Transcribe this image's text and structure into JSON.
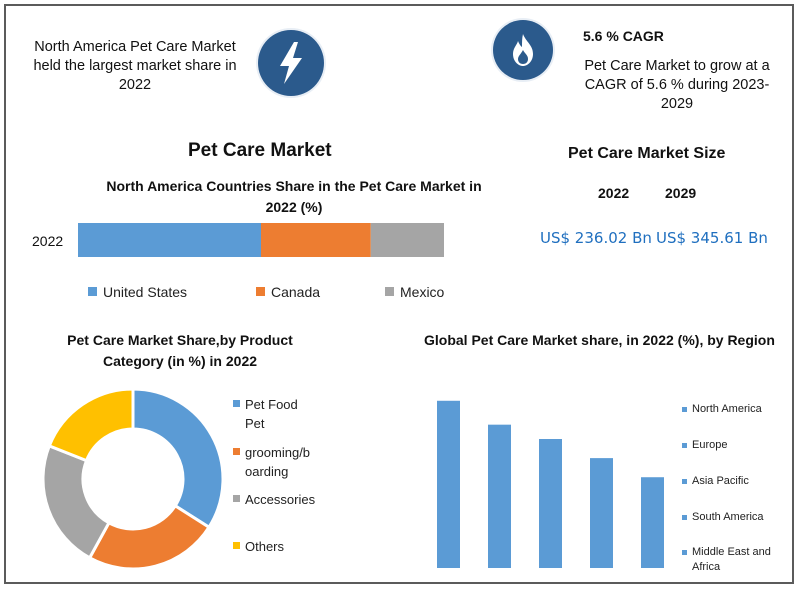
{
  "highlights": {
    "left_text": "North America Pet Care Market held the largest market share in 2022",
    "left_icon": "lightning-bolt-icon",
    "right_icon": "flame-icon",
    "cagr_title": "5.6 % CAGR",
    "cagr_text": "Pet Care Market to grow at a CAGR of 5.6 % during 2023-2029"
  },
  "colors": {
    "blue": "#5b9bd5",
    "orange": "#ed7d31",
    "gray": "#a5a5a5",
    "yellow": "#ffc000",
    "icon_bg": "#2b5a8c",
    "money_blue": "#1f6fbf"
  },
  "market_size": {
    "title": "Pet Care Market Size",
    "year1": "2022",
    "year2": "2029",
    "value1": "US$ 236.02 Bn",
    "value2": "US$ 345.61 Bn"
  },
  "main_title": "Pet Care Market",
  "chart_data": [
    {
      "type": "bar",
      "orientation": "horizontal-stacked",
      "title": "North America Countries Share in the Pet Care Market in 2022 (%)",
      "categories": [
        "2022"
      ],
      "series": [
        {
          "name": "United States",
          "values": [
            50
          ],
          "color": "#5b9bd5"
        },
        {
          "name": "Canada",
          "values": [
            30
          ],
          "color": "#ed7d31"
        },
        {
          "name": "Mexico",
          "values": [
            20
          ],
          "color": "#a5a5a5"
        }
      ],
      "xlim": [
        0,
        100
      ],
      "legend": "bottom"
    },
    {
      "type": "pie",
      "style": "donut",
      "title": "Pet Care Market Share,by Product Category (in %) in 2022",
      "labels": [
        "Pet Food Pet",
        "grooming/boarding",
        "Accessories",
        "Others"
      ],
      "values": [
        34,
        24,
        23,
        19
      ],
      "colors": [
        "#5b9bd5",
        "#ed7d31",
        "#a5a5a5",
        "#ffc000"
      ],
      "legend_display": [
        "Pet Food\nPet",
        "grooming/b\noarding",
        "Accessories",
        "Others"
      ],
      "legend": "right"
    },
    {
      "type": "bar",
      "title": "Global Pet Care Market share, in 2022 (%), by Region",
      "categories": [
        "North America",
        "Europe",
        "Asia Pacific",
        "South America",
        "Middle East and Africa"
      ],
      "values": [
        35,
        30,
        27,
        23,
        19
      ],
      "ylim": [
        0,
        36
      ],
      "color": "#5b9bd5",
      "legend_display": [
        "North America",
        "Europe",
        "Asia Pacific",
        "South America",
        "Middle East and\nAfrica"
      ],
      "legend": "right"
    }
  ]
}
